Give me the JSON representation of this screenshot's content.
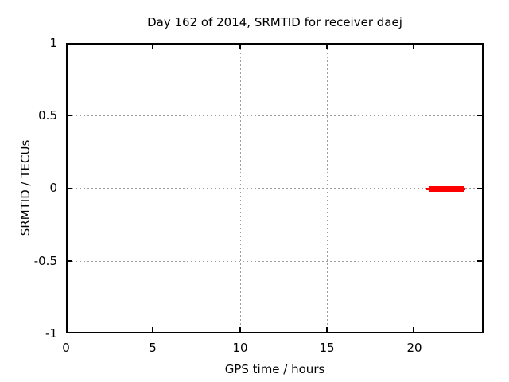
{
  "chart_data": {
    "type": "line",
    "title": "Day 162 of 2014, SRMTID for receiver daej",
    "xlabel": "GPS time / hours",
    "ylabel": "SRMTID / TECUs",
    "xlim": [
      0,
      24
    ],
    "ylim": [
      -1,
      1
    ],
    "x_ticks": [
      0,
      5,
      10,
      15,
      20
    ],
    "y_ticks": [
      1,
      0.5,
      0,
      -0.5,
      -1
    ],
    "x_tick_labels": [
      "0",
      "5",
      "10",
      "15",
      "20"
    ],
    "y_tick_labels": [
      "1",
      "0.5",
      "0",
      "-0.5",
      "-1"
    ],
    "grid": true,
    "grid_style": "dashed",
    "legend_position": "none",
    "series": [
      {
        "name": "SRMTID",
        "color": "#ff0000",
        "style": "thick horizontal segment",
        "y": 0,
        "x_start": 20.9,
        "x_end": 22.9,
        "thin_extent": {
          "x_start": 20.7,
          "x_end": 22.95
        },
        "points": [
          {
            "x": 20.9,
            "y": 0
          },
          {
            "x": 22.9,
            "y": 0
          }
        ]
      }
    ]
  },
  "colors": {
    "background": "#ffffff",
    "border": "#000000",
    "grid": "#9e9e9e",
    "series": "#ff0000",
    "text": "#000000"
  }
}
